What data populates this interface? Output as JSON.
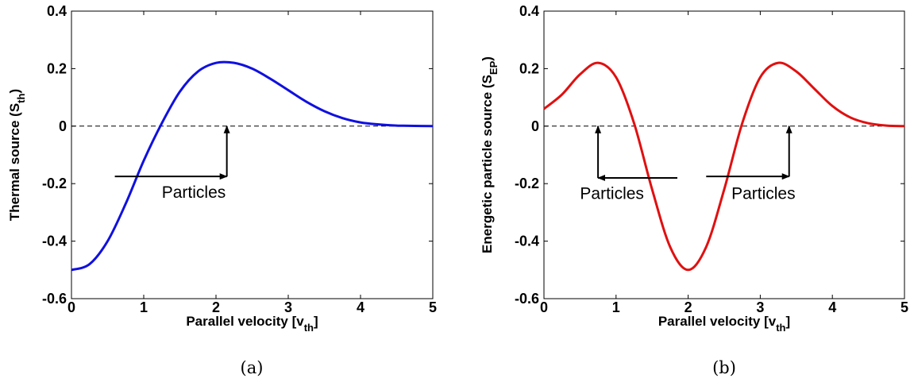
{
  "chart_data": [
    {
      "type": "line",
      "panel": "(a)",
      "xlabel": "Parallel velocity [v",
      "xlabel_sub": "th",
      "xlabel_tail": "]",
      "ylabel": "Thermal source (S",
      "ylabel_sub": "th",
      "ylabel_tail": ")",
      "xlim": [
        0,
        5
      ],
      "ylim": [
        -0.6,
        0.4
      ],
      "x_ticks": [
        "0",
        "1",
        "2",
        "3",
        "4",
        "5"
      ],
      "y_ticks": [
        "-0.6",
        "-0.4",
        "-0.2",
        "0",
        "0.2",
        "0.4"
      ],
      "grid": false,
      "zero_line": "dashed",
      "series": [
        {
          "color": "#1010e0",
          "x": [
            0,
            0.25,
            0.5,
            0.75,
            1.0,
            1.25,
            1.5,
            1.75,
            2.0,
            2.25,
            2.5,
            2.75,
            3.0,
            3.25,
            3.5,
            3.75,
            4.0,
            4.25,
            4.5,
            4.75,
            5.0
          ],
          "y": [
            -0.5,
            -0.48,
            -0.4,
            -0.27,
            -0.12,
            0.01,
            0.12,
            0.19,
            0.22,
            0.22,
            0.2,
            0.165,
            0.125,
            0.085,
            0.052,
            0.028,
            0.013,
            0.006,
            0.002,
            0.001,
            0.0
          ]
        }
      ],
      "annotations": [
        {
          "text": "Particles",
          "x": 1.25,
          "y": -0.21
        }
      ],
      "arrows": [
        {
          "from": [
            0.6,
            -0.175
          ],
          "to": [
            2.15,
            -0.175
          ]
        },
        {
          "from": [
            2.15,
            -0.175
          ],
          "to": [
            2.15,
            0.0
          ]
        }
      ]
    },
    {
      "type": "line",
      "panel": "(b)",
      "xlabel": "Parallel velocity [v",
      "xlabel_sub": "th",
      "xlabel_tail": "]",
      "ylabel": "Energetic particle source (S",
      "ylabel_sub": "EP",
      "ylabel_tail": ")",
      "xlim": [
        0,
        5
      ],
      "ylim": [
        -0.6,
        0.4
      ],
      "x_ticks": [
        "0",
        "1",
        "2",
        "3",
        "4",
        "5"
      ],
      "y_ticks": [
        "-0.6",
        "-0.4",
        "-0.2",
        "0",
        "0.2",
        "0.4"
      ],
      "grid": false,
      "zero_line": "dashed",
      "series": [
        {
          "color": "#e01010",
          "x": [
            0,
            0.25,
            0.5,
            0.75,
            1.0,
            1.25,
            1.5,
            1.75,
            2.0,
            2.25,
            2.5,
            2.75,
            3.0,
            3.25,
            3.5,
            3.75,
            4.0,
            4.25,
            4.5,
            4.75,
            5.0
          ],
          "y": [
            0.06,
            0.11,
            0.18,
            0.22,
            0.17,
            0.01,
            -0.22,
            -0.42,
            -0.5,
            -0.42,
            -0.22,
            0.01,
            0.17,
            0.22,
            0.19,
            0.13,
            0.07,
            0.03,
            0.01,
            0.002,
            0.0
          ]
        }
      ],
      "annotations": [
        {
          "text": "Particles",
          "x": 0.5,
          "y": -0.215
        },
        {
          "text": "Particles",
          "x": 2.6,
          "y": -0.215
        }
      ],
      "arrows": [
        {
          "from": [
            0.75,
            -0.18
          ],
          "to": [
            0.75,
            0.0
          ]
        },
        {
          "from": [
            1.85,
            -0.18
          ],
          "to": [
            0.75,
            -0.18
          ]
        },
        {
          "from": [
            2.25,
            -0.175
          ],
          "to": [
            3.4,
            -0.175
          ]
        },
        {
          "from": [
            3.4,
            -0.175
          ],
          "to": [
            3.4,
            0.0
          ]
        }
      ]
    }
  ]
}
